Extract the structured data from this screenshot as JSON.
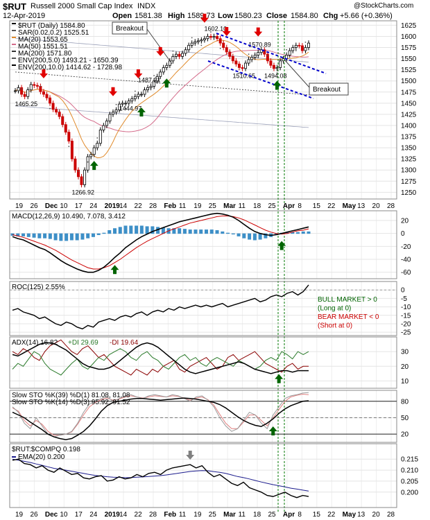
{
  "header": {
    "symbol": "$RUT",
    "name": "Russell 2000 Small Cap Index",
    "exchange": "INDX",
    "date": "12-Apr-2019",
    "open_label": "Open",
    "open": "1581.38",
    "high_label": "High",
    "high": "1589.73",
    "low_label": "Low",
    "low": "1580.23",
    "close_label": "Close",
    "close": "1584.80",
    "chg_label": "Chg",
    "chg": "+5.66 (+0.36%)",
    "watermark": "@StockCharts.com"
  },
  "colors": {
    "up": "#000000",
    "down": "#cc0000",
    "ma20": "#e08a2a",
    "ma50": "#d46b8a",
    "ma200": "#333333",
    "macd_hist": "#3d8fc7",
    "signal": "#cc0000",
    "plus_di": "#2a7a2a",
    "minus_di": "#8b0000",
    "ema": "#1a1a8c",
    "arrow_up": "#006400",
    "arrow_down": "#e00000",
    "arrow_gray": "#808080",
    "channel": "#0000cc",
    "vline": "#007700",
    "bull": "#006400",
    "bear": "#cc0000"
  },
  "x_axis": {
    "labels": [
      "19",
      "26",
      "Dec",
      "10",
      "17",
      "24",
      "2019",
      "14",
      "22",
      "28",
      "Feb",
      "11",
      "19",
      "25",
      "Mar",
      "11",
      "18",
      "25",
      "Apr",
      "8",
      "15",
      "22",
      "May",
      "13",
      "20",
      "28"
    ],
    "bold": [
      "Dec",
      "2019",
      "Feb",
      "Mar",
      "Apr",
      "May"
    ]
  },
  "chart_data": [
    {
      "type": "candlestick",
      "panel": "price",
      "title": "$RUT (Daily) 1584.80",
      "legend": [
        "$RUT (Daily) 1584.80",
        "SAR(0.02,0.2) 1525.51",
        "MA(20) 1553.65",
        "MA(50) 1551.51",
        "MA(200) 1571.80",
        "ENV(200,5.0) 1493.21 - 1650.39",
        "ENV(200,10.0) 1414.62 - 1728.98"
      ],
      "ylim": [
        1235,
        1635
      ],
      "yticks": [
        1250,
        1275,
        1300,
        1325,
        1350,
        1375,
        1400,
        1425,
        1450,
        1475,
        1500,
        1525,
        1550,
        1575,
        1600,
        1625
      ],
      "close": [
        1478,
        1485,
        1470,
        1465,
        1480,
        1492,
        1490,
        1488,
        1476,
        1470,
        1462,
        1450,
        1436,
        1430,
        1420,
        1402,
        1385,
        1365,
        1325,
        1300,
        1285,
        1267,
        1300,
        1330,
        1335,
        1350,
        1360,
        1390,
        1400,
        1410,
        1425,
        1430,
        1435,
        1448,
        1450,
        1450,
        1455,
        1460,
        1465,
        1470,
        1470,
        1480,
        1485,
        1488,
        1500,
        1510,
        1520,
        1530,
        1535,
        1545,
        1555,
        1560,
        1555,
        1562,
        1570,
        1580,
        1585,
        1588,
        1590,
        1592,
        1595,
        1600,
        1598,
        1600,
        1595,
        1585,
        1575,
        1565,
        1555,
        1545,
        1538,
        1530,
        1528,
        1540,
        1548,
        1553,
        1558,
        1564,
        1570,
        1560,
        1545,
        1535,
        1528,
        1530,
        1545,
        1550,
        1558,
        1568,
        1575,
        1580,
        1579,
        1568,
        1575,
        1585
      ],
      "annotations": [
        {
          "text": "1465.25",
          "i": 3
        },
        {
          "text": "1266.92",
          "i": 21
        },
        {
          "text": "1487.21",
          "i": 42
        },
        {
          "text": "1444.97",
          "i": 36
        },
        {
          "text": "1602.10",
          "i": 63
        },
        {
          "text": "1570.89",
          "i": 77
        },
        {
          "text": "1510.65",
          "i": 72
        },
        {
          "text": "1494.08",
          "i": 82
        }
      ],
      "callouts": [
        "Breakout",
        "Breakout"
      ],
      "up_arrows_at": [
        25,
        40,
        48,
        83
      ],
      "down_arrows_at": [
        9,
        31,
        39,
        46,
        60,
        67,
        77
      ]
    },
    {
      "type": "line",
      "panel": "macd",
      "legend": "MACD(12,26,9) 10.490, 7.078, 3.412",
      "ylim": [
        -70,
        35
      ],
      "yticks": [
        -60,
        -40,
        -20,
        0,
        20
      ],
      "macd": [
        -5,
        -8,
        -10,
        -14,
        -18,
        -22,
        -25,
        -30,
        -36,
        -42,
        -47,
        -51,
        -55,
        -58,
        -60,
        -60,
        -57,
        -52,
        -45,
        -37,
        -30,
        -22,
        -16,
        -10,
        -5,
        -1,
        3,
        6,
        9,
        12,
        15,
        18,
        20,
        22,
        24,
        26,
        28,
        30,
        31,
        30,
        28,
        25,
        20,
        14,
        8,
        3,
        0,
        -2,
        -3,
        -2,
        0,
        2,
        4,
        6,
        8,
        10
      ],
      "signal": [
        -2,
        -4,
        -6,
        -9,
        -12,
        -15,
        -18,
        -22,
        -26,
        -31,
        -36,
        -41,
        -45,
        -49,
        -53,
        -55,
        -55,
        -53,
        -50,
        -45,
        -40,
        -34,
        -28,
        -22,
        -17,
        -12,
        -8,
        -4,
        0,
        4,
        7,
        10,
        13,
        16,
        18,
        20,
        22,
        24,
        26,
        27,
        27,
        26,
        24,
        21,
        17,
        13,
        9,
        5,
        2,
        0,
        -1,
        0,
        2,
        4,
        5,
        7
      ],
      "up_arrows_at": [
        19,
        50
      ]
    },
    {
      "type": "line",
      "panel": "roc",
      "legend": "ROC(125) 2.55%",
      "ylim": [
        -27,
        5
      ],
      "yticks": [
        -25,
        -20,
        -15,
        -10,
        -5,
        0
      ],
      "values": [
        -12,
        -11,
        -13,
        -14,
        -15,
        -17,
        -16,
        -18,
        -20,
        -21,
        -19,
        -20,
        -22,
        -23,
        -21,
        -22,
        -19,
        -18,
        -17,
        -18,
        -16,
        -15,
        -16,
        -14,
        -13,
        -15,
        -13,
        -12,
        -13,
        -11,
        -12,
        -10,
        -11,
        -10,
        -9,
        -10,
        -9,
        -10,
        -9,
        -8,
        -10,
        -9,
        -8,
        -7,
        -6,
        -5,
        -7,
        -6,
        -4,
        -3,
        -4,
        -2,
        -1,
        -3,
        -1,
        3
      ],
      "notes": [
        "BULL MARKET > 0",
        "(Long at 0)",
        "BEAR MARKET < 0",
        "(Short at 0)"
      ]
    },
    {
      "type": "line",
      "panel": "adx",
      "legend": [
        "ADX(14) 16.82",
        "+DI 29.69",
        "-DI 19.64"
      ],
      "ylim": [
        5,
        40
      ],
      "yticks": [
        10,
        20,
        30
      ],
      "adx": [
        28,
        27,
        29,
        31,
        33,
        35,
        36,
        36,
        35,
        33,
        31,
        28,
        25,
        22,
        20,
        19,
        18,
        18,
        19,
        21,
        24,
        27,
        30,
        33,
        35,
        36,
        35,
        33,
        30,
        27,
        24,
        21,
        18,
        16,
        15,
        16,
        17,
        18,
        19,
        20,
        21,
        22,
        23,
        22,
        20,
        18,
        17,
        16,
        15,
        16,
        17,
        17,
        16,
        17,
        17,
        17
      ],
      "plus_di": [
        18,
        22,
        20,
        25,
        30,
        28,
        22,
        18,
        16,
        14,
        18,
        22,
        25,
        20,
        18,
        22,
        26,
        24,
        28,
        30,
        32,
        30,
        26,
        24,
        28,
        30,
        26,
        24,
        20,
        18,
        22,
        26,
        28,
        24,
        26,
        22,
        20,
        24,
        26,
        24,
        22,
        20,
        24,
        22,
        20,
        18,
        20,
        24,
        26,
        24,
        30,
        28,
        25,
        30,
        28,
        30
      ],
      "minus_di": [
        30,
        28,
        32,
        30,
        26,
        24,
        30,
        34,
        36,
        38,
        34,
        30,
        28,
        32,
        34,
        30,
        26,
        28,
        24,
        20,
        18,
        16,
        14,
        18,
        16,
        14,
        18,
        16,
        20,
        22,
        24,
        18,
        16,
        20,
        22,
        24,
        26,
        22,
        18,
        20,
        26,
        28,
        24,
        26,
        28,
        30,
        26,
        22,
        20,
        18,
        16,
        20,
        22,
        18,
        20,
        20
      ],
      "up_arrows_at": [
        50
      ]
    },
    {
      "type": "line",
      "panel": "stoch",
      "legend": [
        "Slow STO %K(39) %D(1) 81.08, 81.08",
        "Slow STO %K(14) %D(3) 95.92, 91.52"
      ],
      "ylim": [
        5,
        100
      ],
      "yticks": [
        20,
        50,
        80
      ],
      "k39": [
        60,
        55,
        50,
        42,
        35,
        28,
        20,
        15,
        12,
        10,
        12,
        18,
        25,
        35,
        48,
        62,
        72,
        78,
        80,
        82,
        84,
        85,
        85,
        84,
        83,
        82,
        83,
        84,
        85,
        86,
        85,
        84,
        82,
        80,
        78,
        74,
        68,
        60,
        52,
        45,
        40,
        36,
        34,
        40,
        48,
        58,
        66,
        72,
        76,
        80,
        81
      ],
      "k14": [
        70,
        60,
        40,
        30,
        50,
        35,
        20,
        15,
        18,
        20,
        25,
        40,
        60,
        75,
        80,
        85,
        88,
        80,
        85,
        90,
        92,
        88,
        85,
        90,
        92,
        90,
        88,
        92,
        90,
        85,
        80,
        88,
        90,
        82,
        70,
        50,
        35,
        25,
        30,
        45,
        60,
        55,
        40,
        30,
        55,
        70,
        85,
        90,
        92,
        95,
        96
      ],
      "d14": [
        68,
        62,
        45,
        35,
        45,
        38,
        25,
        18,
        18,
        20,
        24,
        38,
        55,
        70,
        78,
        83,
        86,
        82,
        84,
        88,
        90,
        88,
        86,
        88,
        90,
        89,
        88,
        90,
        89,
        86,
        82,
        86,
        88,
        83,
        73,
        56,
        40,
        30,
        30,
        42,
        55,
        55,
        45,
        35,
        50,
        65,
        80,
        88,
        91,
        93,
        92
      ],
      "up_arrows_at": [
        44
      ]
    },
    {
      "type": "line",
      "panel": "ratio",
      "legend": "$RUT:$COMPQ 0.198",
      "legend2": "EMA(20) 0.200",
      "ylim": [
        0.193,
        0.222
      ],
      "yticks": [
        0.2,
        0.205,
        0.21,
        0.215
      ],
      "values": [
        0.2145,
        0.215,
        0.213,
        0.2125,
        0.211,
        0.212,
        0.21,
        0.209,
        0.211,
        0.2095,
        0.208,
        0.2085,
        0.2065,
        0.206,
        0.207,
        0.2075,
        0.205,
        0.2055,
        0.207,
        0.206,
        0.2065,
        0.208,
        0.207,
        0.2085,
        0.209,
        0.208,
        0.21,
        0.211,
        0.2115,
        0.212,
        0.2125,
        0.211,
        0.212,
        0.209,
        0.207,
        0.208,
        0.206,
        0.204,
        0.203,
        0.2045,
        0.202,
        0.201,
        0.2,
        0.1985,
        0.198,
        0.199,
        0.2,
        0.1985,
        0.1975,
        0.1985,
        0.198
      ],
      "ema": [
        0.215,
        0.2145,
        0.214,
        0.2135,
        0.2128,
        0.2122,
        0.2115,
        0.2108,
        0.2104,
        0.21,
        0.2095,
        0.209,
        0.2085,
        0.208,
        0.2076,
        0.2073,
        0.207,
        0.2068,
        0.2067,
        0.2066,
        0.2066,
        0.2068,
        0.2069,
        0.2071,
        0.2073,
        0.2075,
        0.2078,
        0.2082,
        0.2086,
        0.209,
        0.2094,
        0.2096,
        0.2098,
        0.2097,
        0.2093,
        0.209,
        0.2085,
        0.2078,
        0.2071,
        0.2066,
        0.206,
        0.2053,
        0.2046,
        0.204,
        0.2034,
        0.2029,
        0.2024,
        0.2018,
        0.2014,
        0.2009,
        0.2005
      ],
      "down_arrow_gray_at": [
        30
      ]
    }
  ]
}
